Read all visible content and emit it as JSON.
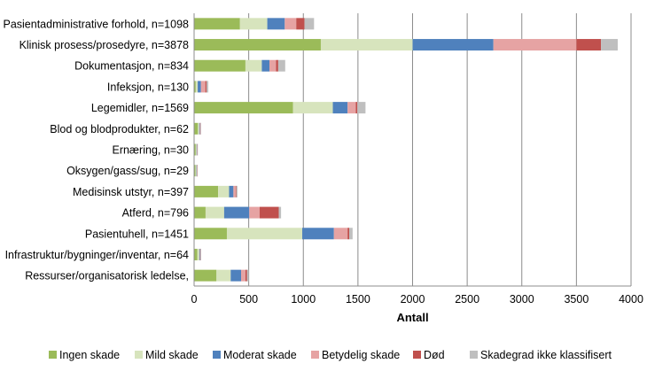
{
  "chart_data": {
    "type": "bar",
    "orientation": "horizontal",
    "stacked": true,
    "title": "",
    "xlabel": "Antall",
    "ylabel": "",
    "xlim": [
      0,
      4000
    ],
    "xticks": [
      0,
      500,
      1000,
      1500,
      2000,
      2500,
      3000,
      3500,
      4000
    ],
    "grid": "vertical",
    "legend_position": "bottom",
    "categories": [
      "Pasientadministrative forhold, n=1098",
      "Klinisk prosess/prosedyre, n=3878",
      "Dokumentasjon, n=834",
      "Infeksjon, n=130",
      "Legemidler, n=1569",
      "Blod og blodprodukter, n=62",
      "Ernæring, n=30",
      "Oksygen/gass/sug, n=29",
      "Medisinsk utstyr, n=397",
      "Atferd, n=796",
      "Pasientuhell, n=1451",
      "Infrastruktur/bygninger/inventar, n=64",
      "Ressurser/organisatorisk ledelse,"
    ],
    "series": [
      {
        "name": "Ingen skade",
        "color": "#9BBB59",
        "values": [
          420,
          1160,
          470,
          15,
          905,
          35,
          15,
          12,
          220,
          105,
          300,
          30,
          205
        ]
      },
      {
        "name": "Mild skade",
        "color": "#D7E4BD",
        "values": [
          250,
          840,
          150,
          18,
          365,
          12,
          8,
          10,
          100,
          170,
          690,
          18,
          130
        ]
      },
      {
        "name": "Moderat skade",
        "color": "#4F81BD",
        "values": [
          160,
          740,
          70,
          30,
          135,
          5,
          3,
          3,
          40,
          230,
          290,
          5,
          95
        ]
      },
      {
        "name": "Betydelig skade",
        "color": "#E6A3A3",
        "values": [
          105,
          760,
          60,
          40,
          75,
          4,
          2,
          2,
          20,
          95,
          125,
          3,
          40
        ]
      },
      {
        "name": "Død",
        "color": "#C0504D",
        "values": [
          75,
          225,
          20,
          12,
          15,
          2,
          1,
          1,
          7,
          175,
          15,
          2,
          15
        ]
      },
      {
        "name": "Skadegrad ikke klassifisert",
        "color": "#BFBFBF",
        "values": [
          88,
          153,
          64,
          15,
          74,
          4,
          1,
          1,
          10,
          21,
          31,
          6,
          15
        ]
      }
    ]
  }
}
